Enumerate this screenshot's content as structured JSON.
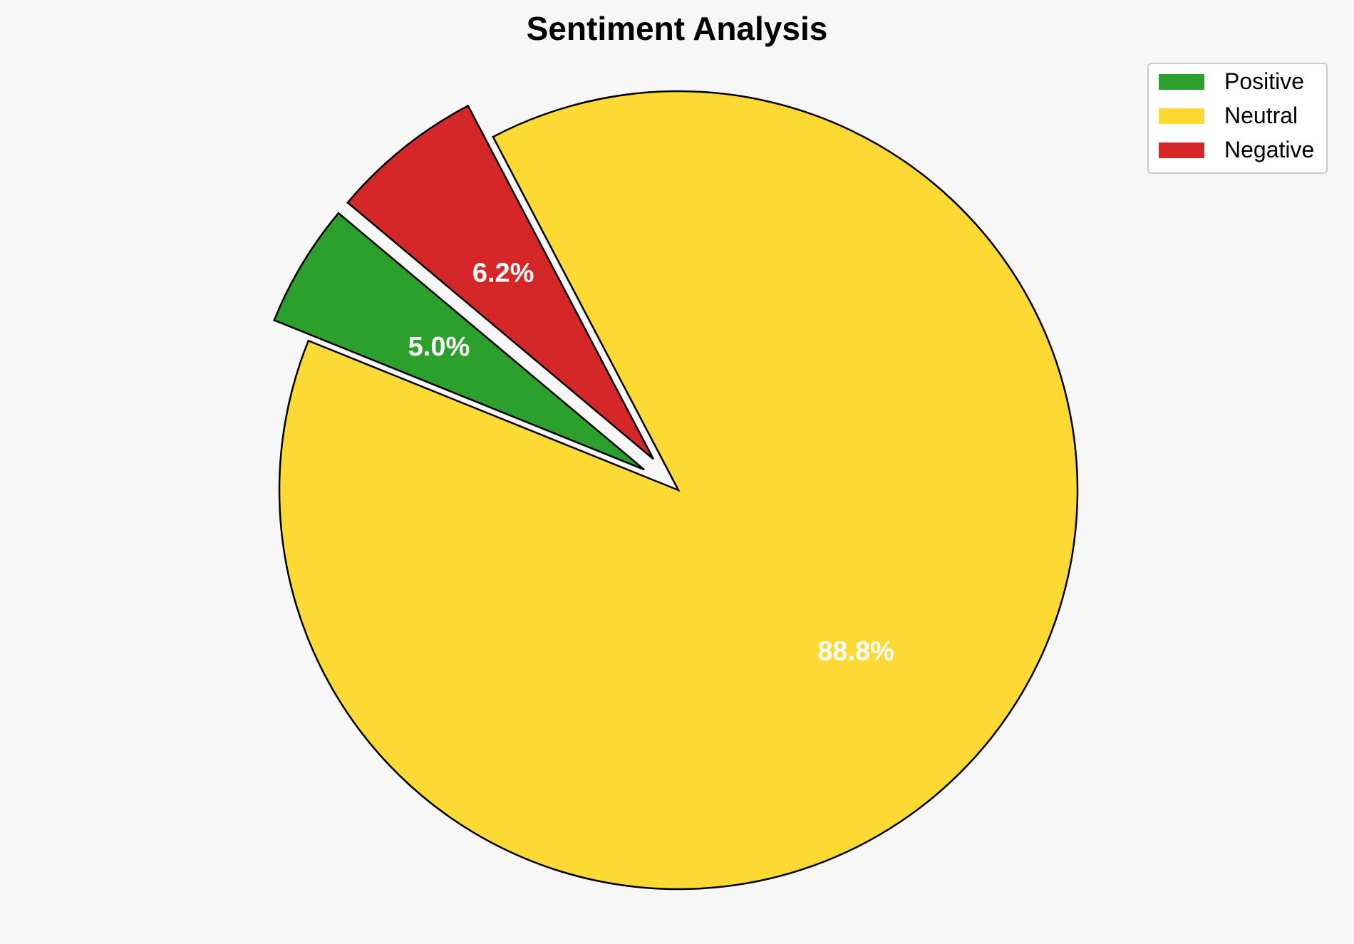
{
  "chart_data": {
    "type": "pie",
    "title": "Sentiment Analysis",
    "slices": [
      {
        "label": "Positive",
        "value": 5.0,
        "pct_label": "5.0%",
        "color": "#2ca02c",
        "exploded": true
      },
      {
        "label": "Neutral",
        "value": 88.8,
        "pct_label": "88.8%",
        "color": "#fdda33",
        "exploded": false
      },
      {
        "label": "Negative",
        "value": 6.2,
        "pct_label": "6.2%",
        "color": "#d62728",
        "exploded": true
      }
    ],
    "legend": {
      "position": "top-right",
      "entries": [
        "Positive",
        "Neutral",
        "Negative"
      ]
    }
  }
}
